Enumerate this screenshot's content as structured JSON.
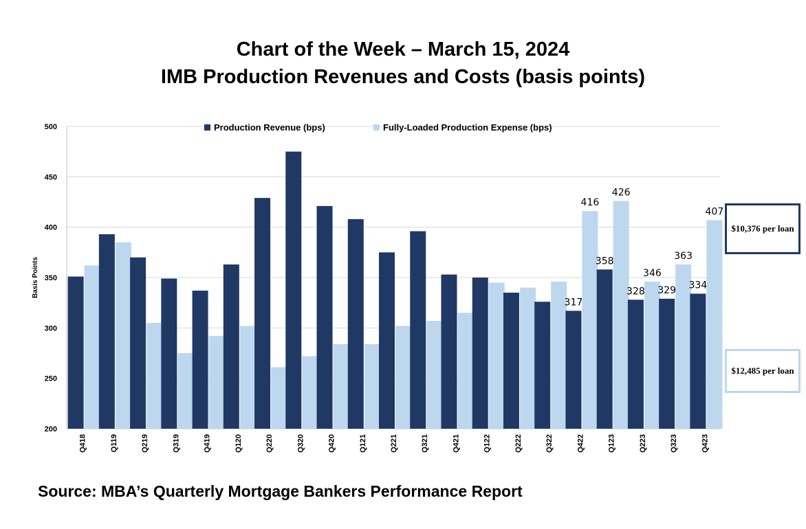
{
  "title_line1": "Chart of the Week – March 15, 2024",
  "title_line2": "IMB Production Revenues and Costs (basis points)",
  "source": "Source: MBA’s Quarterly Mortgage Bankers Performance Report",
  "callouts": [
    {
      "text": "$10,376 per loan",
      "series": "Production Revenue (bps)"
    },
    {
      "text": "$12,485 per loan",
      "series": "Fully-Loaded Production Expense (bps)"
    }
  ],
  "colors": {
    "revenue": "#203864",
    "expense": "#bdd7ee",
    "grid": "#d9d9d9",
    "axis": "#bfbfbf"
  },
  "chart_data": {
    "type": "bar",
    "title": "",
    "xlabel": "",
    "ylabel": "Basis Points",
    "ylim": [
      200,
      500
    ],
    "yticks": [
      200,
      250,
      300,
      350,
      400,
      450,
      500
    ],
    "grid": true,
    "legend_position": "top",
    "categories": [
      "Q418",
      "Q119",
      "Q219",
      "Q319",
      "Q419",
      "Q120",
      "Q220",
      "Q320",
      "Q420",
      "Q121",
      "Q221",
      "Q321",
      "Q421",
      "Q122",
      "Q222",
      "Q322",
      "Q422",
      "Q123",
      "Q223",
      "Q323",
      "Q423"
    ],
    "series": [
      {
        "name": "Production Revenue (bps)",
        "values": [
          351,
          393,
          370,
          349,
          337,
          363,
          429,
          475,
          421,
          408,
          375,
          396,
          353,
          350,
          335,
          326,
          317,
          358,
          328,
          329,
          334
        ],
        "labels": [
          null,
          null,
          null,
          null,
          null,
          null,
          null,
          null,
          null,
          null,
          null,
          null,
          null,
          null,
          null,
          null,
          "317",
          "358",
          "328",
          "329",
          "334"
        ]
      },
      {
        "name": "Fully-Loaded Production Expense (bps)",
        "values": [
          362,
          385,
          305,
          275,
          292,
          302,
          261,
          272,
          284,
          284,
          302,
          307,
          315,
          345,
          340,
          346,
          416,
          426,
          346,
          363,
          407
        ],
        "labels": [
          null,
          null,
          null,
          null,
          null,
          null,
          null,
          null,
          null,
          null,
          null,
          null,
          null,
          null,
          null,
          null,
          "416",
          "426",
          "346",
          "363",
          "407"
        ]
      }
    ]
  }
}
